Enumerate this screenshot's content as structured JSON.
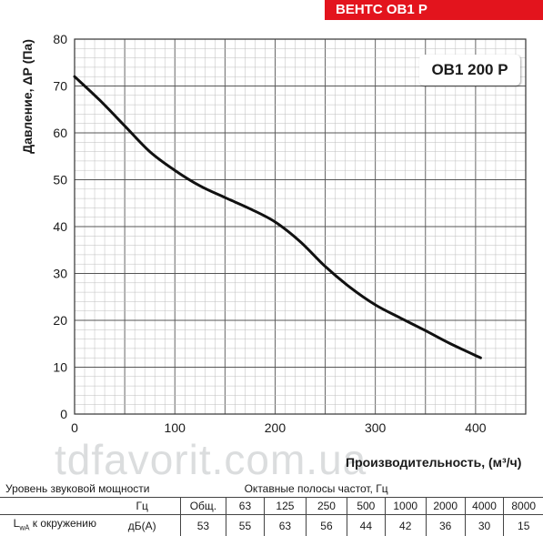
{
  "banner": "ВЕНТС ОВ1 Р",
  "model": "ОВ1 200 Р",
  "watermark": "tdfavorit.com.ua",
  "colors": {
    "brand_red": "#e3141d",
    "curve": "#111111"
  },
  "chart_data": {
    "type": "line",
    "ylabel": "Давление, ΔР (Па)",
    "xlabel": "Производительность, (м³/ч)",
    "xlim": [
      0,
      450
    ],
    "ylim": [
      0,
      80
    ],
    "xticks": [
      0,
      100,
      200,
      300,
      400
    ],
    "yticks": [
      0,
      10,
      20,
      30,
      40,
      50,
      60,
      70,
      80
    ],
    "grid": true,
    "series": [
      {
        "x": [
          0,
          25,
          50,
          75,
          100,
          125,
          150,
          175,
          200,
          225,
          250,
          275,
          300,
          325,
          350,
          375,
          405
        ],
        "y": [
          72,
          67,
          61.5,
          56,
          52,
          48.7,
          46.2,
          43.8,
          41,
          36.8,
          31.5,
          27,
          23.3,
          20.5,
          17.8,
          15,
          12
        ]
      }
    ]
  },
  "sound_table": {
    "title_left": "Уровень звуковой мощности",
    "title_right": "Октавные полосы частот, Гц",
    "unit_hz": "Гц",
    "headers": [
      "Общ.",
      "63",
      "125",
      "250",
      "500",
      "1000",
      "2000",
      "4000",
      "8000"
    ],
    "row_label_main": "L",
    "row_label_sub": "wA",
    "row_label_rest": " к окружению",
    "row_unit": "дБ(А)",
    "values": [
      "53",
      "55",
      "63",
      "56",
      "44",
      "42",
      "36",
      "30",
      "15"
    ]
  }
}
